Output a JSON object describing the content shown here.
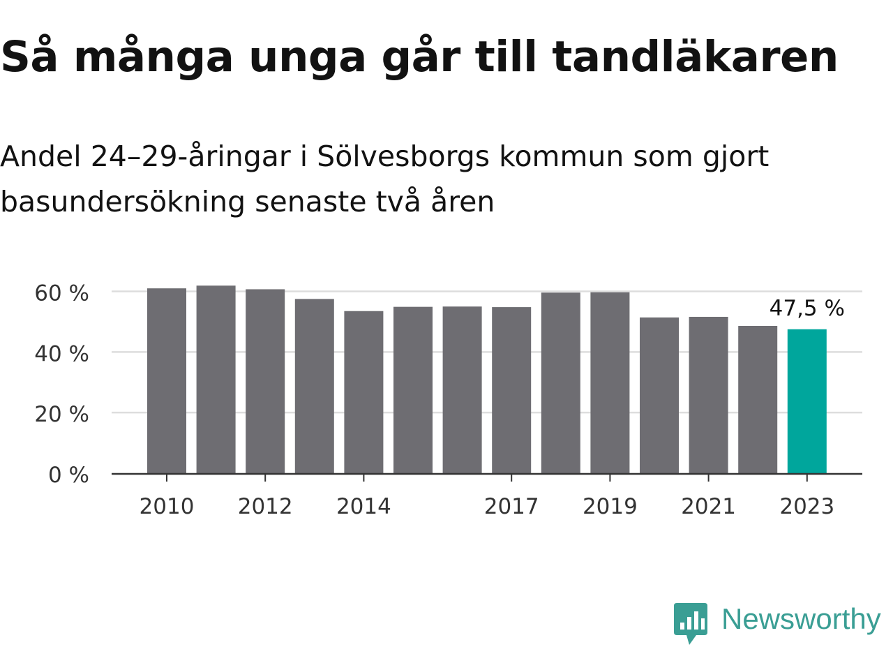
{
  "title": "Så många unga går till tandläkaren",
  "subtitle": "Andel 24–29-åringar i Sölvesborgs kommun som gjort basundersökning senaste två åren",
  "brand": {
    "name": "Newsworthy",
    "icon": "newsworthy-logo-icon",
    "color": "#3a9e94"
  },
  "chart_data": {
    "type": "bar",
    "categories": [
      "2010",
      "2011",
      "2012",
      "2013",
      "2014",
      "2015",
      "2016",
      "2017",
      "2018",
      "2019",
      "2020",
      "2021",
      "2022",
      "2023"
    ],
    "values": [
      61.0,
      61.9,
      60.7,
      57.5,
      53.5,
      54.9,
      55.0,
      54.8,
      59.6,
      59.7,
      51.4,
      51.6,
      48.6,
      47.5
    ],
    "x_tick_labels": [
      "2010",
      "2012",
      "2014",
      "2017",
      "2019",
      "2021",
      "2023"
    ],
    "y_ticks": [
      0,
      20,
      40,
      60
    ],
    "y_tick_format": "{v} %",
    "ylim": [
      0,
      60
    ],
    "grid": true,
    "highlight_index": 13,
    "highlight_label": "47,5 %",
    "colors": {
      "bar": "#6e6d72",
      "highlight": "#00a69c",
      "grid": "#dddddd",
      "axis": "#333333",
      "tick_label": "#333333"
    },
    "xlabel": "",
    "ylabel": ""
  }
}
